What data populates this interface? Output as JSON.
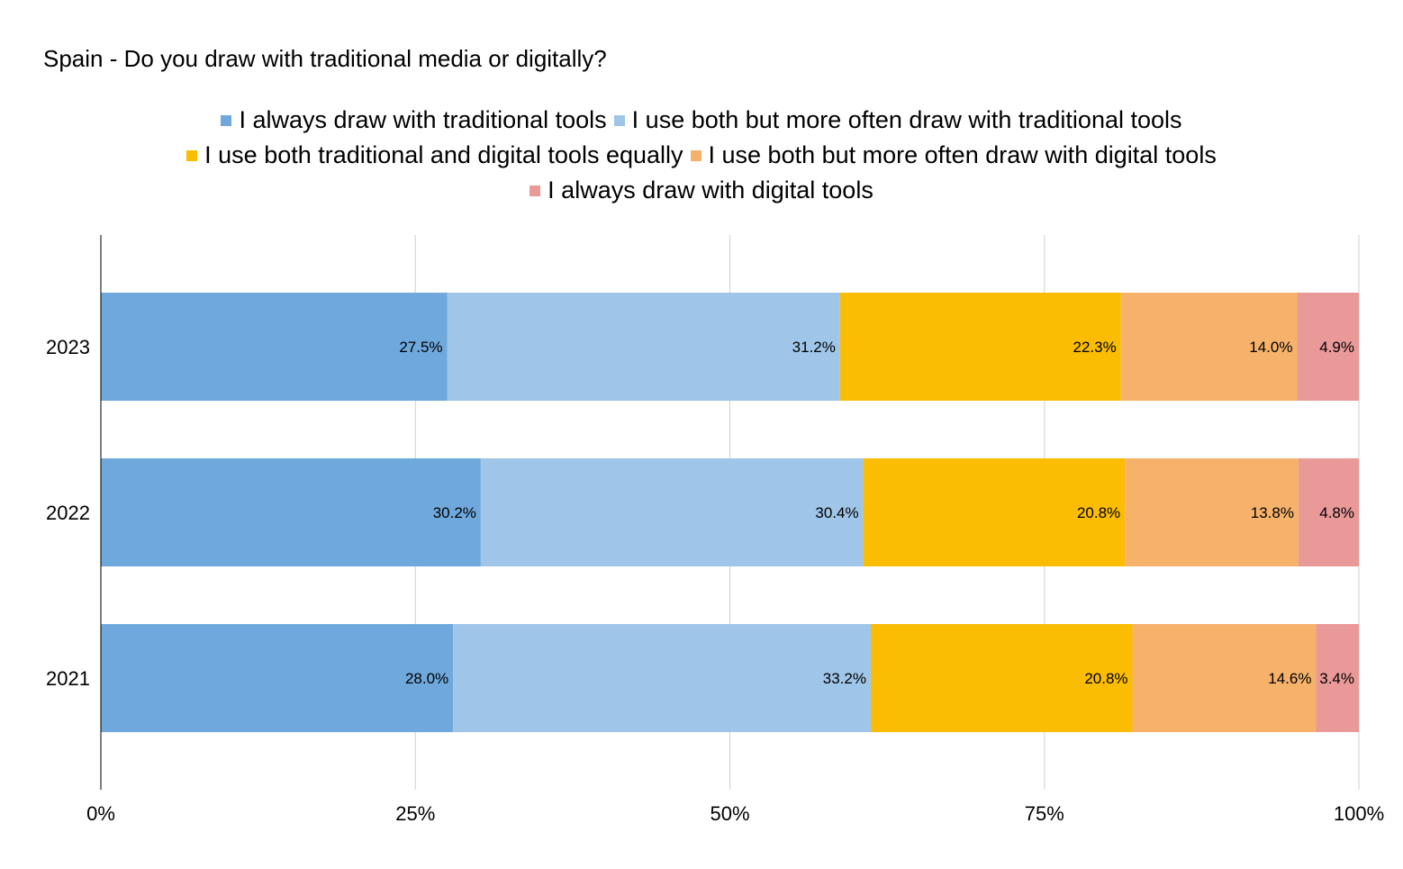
{
  "chart_data": {
    "type": "bar",
    "orientation": "horizontal",
    "stacked": true,
    "title": "Spain - Do you draw with traditional media or digitally?",
    "categories": [
      "2023",
      "2022",
      "2021"
    ],
    "series": [
      {
        "name": "I always draw with traditional tools",
        "color": "#6fa8dc",
        "values": [
          27.5,
          30.2,
          28.0
        ],
        "labels": [
          "27.5%",
          "30.2%",
          "28.0%"
        ]
      },
      {
        "name": "I use both but more often draw with traditional tools",
        "color": "#9fc5e8",
        "values": [
          31.2,
          30.4,
          33.2
        ],
        "labels": [
          "31.2%",
          "30.4%",
          "33.2%"
        ]
      },
      {
        "name": "I use both traditional and digital tools equally",
        "color": "#fbbc04",
        "values": [
          22.3,
          20.8,
          20.8
        ],
        "labels": [
          "22.3%",
          "20.8%",
          "20.8%"
        ]
      },
      {
        "name": "I use both but more often draw with digital tools",
        "color": "#f6b26b",
        "values": [
          14.0,
          13.8,
          14.6
        ],
        "labels": [
          "14.0%",
          "13.8%",
          "14.6%"
        ]
      },
      {
        "name": "I always draw with digital tools",
        "color": "#ea9999",
        "values": [
          4.9,
          4.8,
          3.4
        ],
        "labels": [
          "4.9%",
          "4.8%",
          "3.4%"
        ]
      }
    ],
    "xlim": [
      0,
      100
    ],
    "xticks": [
      0,
      25,
      50,
      75,
      100
    ],
    "xtick_labels": [
      "0%",
      "25%",
      "50%",
      "75%",
      "100%"
    ],
    "grid": true,
    "legend_position": "top"
  }
}
